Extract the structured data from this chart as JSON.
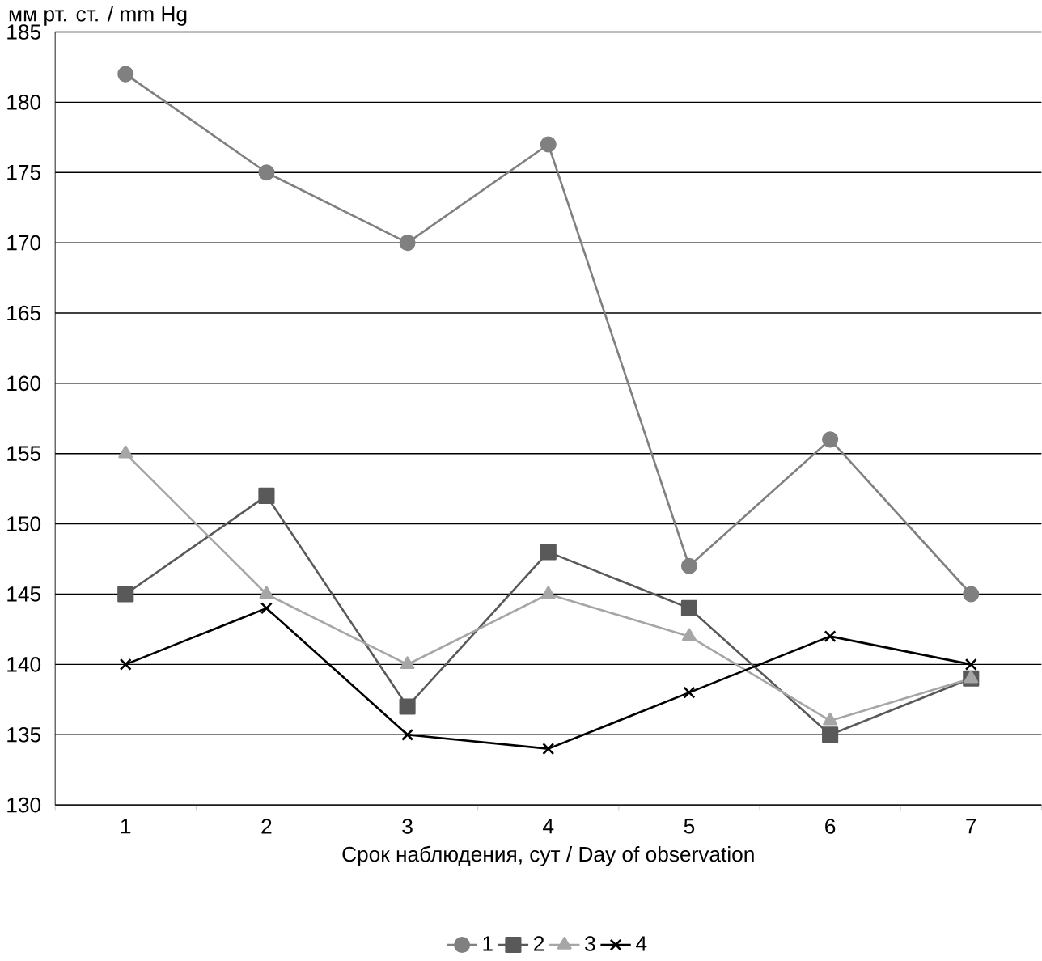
{
  "chart_data": {
    "type": "line",
    "xlabel": "Срок наблюдения, сут / Day of observation",
    "ylabel": "мм рт. ст. / mm Hg",
    "categories": [
      "1",
      "2",
      "3",
      "4",
      "5",
      "6",
      "7"
    ],
    "ylim": [
      130,
      185
    ],
    "yticks": [
      130,
      135,
      140,
      145,
      150,
      155,
      160,
      165,
      170,
      175,
      180,
      185
    ],
    "grid": "y",
    "legend": "bottom",
    "line_style": "solid",
    "series": [
      {
        "name": "1",
        "color": "#808080",
        "marker": "circle",
        "values": [
          182,
          175,
          170,
          177,
          147,
          156,
          145
        ]
      },
      {
        "name": "2",
        "color": "#595959",
        "marker": "square",
        "values": [
          145,
          152,
          137,
          148,
          144,
          135,
          139
        ]
      },
      {
        "name": "3",
        "color": "#a6a6a6",
        "marker": "triangle",
        "values": [
          155,
          145,
          140,
          145,
          142,
          136,
          139
        ]
      },
      {
        "name": "4",
        "color": "#000000",
        "marker": "cross",
        "values": [
          140,
          144,
          135,
          134,
          138,
          142,
          140
        ]
      }
    ]
  }
}
